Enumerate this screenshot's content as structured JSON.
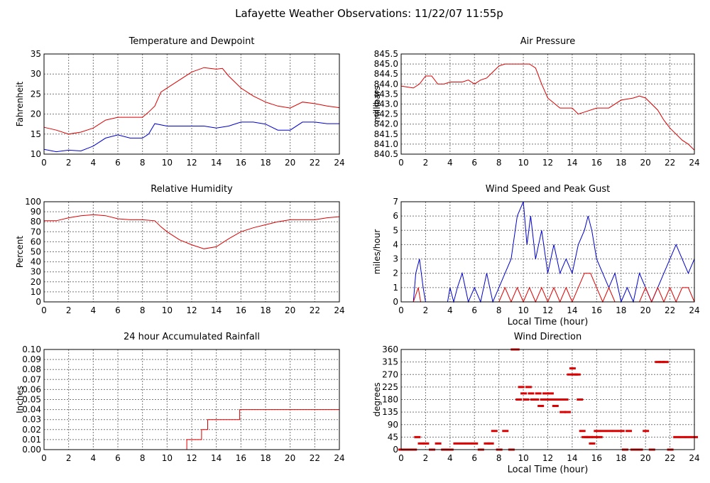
{
  "page": {
    "title": "Lafayette Weather Observations: 11/22/07 11:55p"
  },
  "colors": {
    "red": "#dd0000",
    "blue": "#0000cc",
    "grid": "#777777",
    "axis": "#000000"
  },
  "chart_data": [
    {
      "id": "temp",
      "type": "line",
      "title": "Temperature and Dewpoint",
      "xlabel": "",
      "ylabel": "Fahrenheit",
      "xlim": [
        0,
        24
      ],
      "ylim": [
        10,
        35
      ],
      "xticks": [
        0,
        2,
        4,
        6,
        8,
        10,
        12,
        14,
        16,
        18,
        20,
        22,
        24
      ],
      "yticks": [
        10,
        15,
        20,
        25,
        30,
        35
      ],
      "series": [
        {
          "color": "#dd0000",
          "x": [
            0,
            1,
            2,
            3,
            4,
            5,
            6,
            7,
            8,
            8.5,
            9,
            9.5,
            10,
            11,
            12,
            13,
            14,
            14.5,
            15,
            16,
            17,
            18,
            19,
            20,
            21,
            22,
            23,
            24
          ],
          "y": [
            16.7,
            16,
            15,
            15.5,
            16.5,
            18.5,
            19.2,
            19.2,
            19.2,
            20.5,
            22,
            25.5,
            26.5,
            28.5,
            30.5,
            31.6,
            31.2,
            31.4,
            29.5,
            26.5,
            24.5,
            23,
            22,
            21.5,
            23,
            22.6,
            22,
            21.6
          ]
        },
        {
          "color": "#0000cc",
          "x": [
            0,
            1,
            2,
            3,
            4,
            5,
            6,
            7,
            8,
            8.5,
            9,
            10,
            11,
            12,
            13,
            14,
            15,
            16,
            17,
            18,
            19,
            20,
            21,
            22,
            23,
            24
          ],
          "y": [
            11.2,
            10.6,
            11,
            10.8,
            12,
            14,
            14.8,
            14,
            14,
            15,
            17.6,
            17,
            17,
            17,
            17,
            16.5,
            17,
            18,
            18,
            17.5,
            16,
            16,
            18,
            18,
            17.6,
            17.6
          ]
        }
      ]
    },
    {
      "id": "pressure",
      "type": "line",
      "title": "Air Pressure",
      "xlabel": "",
      "ylabel": "millibars",
      "xlim": [
        0,
        24
      ],
      "ylim": [
        840.5,
        845.5
      ],
      "xticks": [
        0,
        2,
        4,
        6,
        8,
        10,
        12,
        14,
        16,
        18,
        20,
        22,
        24
      ],
      "yticks": [
        840.5,
        841.0,
        841.5,
        842.0,
        842.5,
        843.0,
        843.5,
        844.0,
        844.5,
        845.0,
        845.5
      ],
      "ytick_labels": [
        "840.5",
        "841.0",
        "841.5",
        "842.0",
        "842.5",
        "843.0",
        "843.5",
        "844.0",
        "844.5",
        "845.0",
        "845.5"
      ],
      "series": [
        {
          "color": "#dd0000",
          "x": [
            0,
            1,
            1.5,
            2,
            2.5,
            3,
            3.5,
            4,
            5,
            5.5,
            6,
            6.5,
            7,
            7.5,
            8,
            8.5,
            9,
            10,
            10.5,
            11,
            11.5,
            12,
            13,
            14,
            14.5,
            15,
            16,
            17,
            18,
            19,
            19.5,
            20,
            21,
            21.5,
            22,
            22.5,
            23,
            23.5,
            24
          ],
          "y": [
            843.9,
            843.8,
            844.0,
            844.4,
            844.4,
            844.0,
            844.0,
            844.1,
            844.1,
            844.2,
            844.0,
            844.2,
            844.3,
            844.6,
            844.9,
            845.0,
            845.0,
            845.0,
            845.0,
            844.8,
            844.0,
            843.3,
            842.8,
            842.8,
            842.5,
            842.6,
            842.8,
            842.8,
            843.2,
            843.3,
            843.4,
            843.3,
            842.7,
            842.2,
            841.8,
            841.5,
            841.2,
            841.0,
            840.7
          ]
        }
      ]
    },
    {
      "id": "humidity",
      "type": "line",
      "title": "Relative Humidity",
      "xlabel": "",
      "ylabel": "Percent",
      "xlim": [
        0,
        24
      ],
      "ylim": [
        0,
        100
      ],
      "xticks": [
        0,
        2,
        4,
        6,
        8,
        10,
        12,
        14,
        16,
        18,
        20,
        22,
        24
      ],
      "yticks": [
        0,
        10,
        20,
        30,
        40,
        50,
        60,
        70,
        80,
        90,
        100
      ],
      "series": [
        {
          "color": "#dd0000",
          "x": [
            0,
            1,
            2,
            3,
            4,
            5,
            6,
            7,
            8,
            9,
            9.5,
            10,
            11,
            12,
            13,
            14,
            15,
            16,
            17,
            18,
            19,
            20,
            21,
            22,
            23,
            24
          ],
          "y": [
            81,
            81,
            84,
            86,
            87,
            86,
            83,
            82,
            82,
            81,
            75,
            70,
            62,
            57,
            53,
            55,
            63,
            70,
            74,
            77,
            80,
            82,
            82,
            82,
            84,
            85
          ]
        }
      ]
    },
    {
      "id": "wind",
      "type": "line",
      "title": "Wind Speed and Peak Gust",
      "xlabel": "Local Time (hour)",
      "ylabel": "miles/hour",
      "xlim": [
        0,
        24
      ],
      "ylim": [
        0,
        7
      ],
      "xticks": [
        0,
        2,
        4,
        6,
        8,
        10,
        12,
        14,
        16,
        18,
        20,
        22,
        24
      ],
      "yticks": [
        0,
        1,
        2,
        3,
        4,
        5,
        6,
        7
      ],
      "series": [
        {
          "color": "#0000cc",
          "x": [
            0,
            1,
            1.2,
            1.5,
            1.8,
            2,
            3,
            3.8,
            4,
            4.3,
            4.6,
            5,
            5.5,
            6,
            6.5,
            7,
            7.5,
            8,
            8.5,
            9,
            9.5,
            10,
            10.3,
            10.6,
            11,
            11.5,
            12,
            12.5,
            13,
            13.5,
            14,
            14.5,
            15,
            15.3,
            15.6,
            16,
            16.5,
            17,
            17.5,
            18,
            18.5,
            19,
            19.5,
            20,
            20.5,
            21,
            21.5,
            22,
            22.5,
            23,
            23.5,
            24
          ],
          "y": [
            0,
            0,
            2,
            3,
            1,
            0,
            0,
            0,
            1,
            0,
            1,
            2,
            0,
            1,
            0,
            2,
            0,
            1,
            2,
            3,
            6,
            7,
            4,
            6,
            3,
            5,
            2,
            4,
            2,
            3,
            2,
            4,
            5,
            6,
            5,
            3,
            2,
            1,
            2,
            0,
            1,
            0,
            2,
            1,
            0,
            1,
            2,
            3,
            4,
            3,
            2,
            3
          ]
        },
        {
          "color": "#dd0000",
          "x": [
            0,
            1,
            1.4,
            1.6,
            2,
            8,
            8.5,
            9,
            9.5,
            10,
            10.5,
            11,
            11.5,
            12,
            12.5,
            13,
            13.5,
            14,
            14.5,
            15,
            15.5,
            16,
            16.5,
            17,
            17.5,
            18,
            18.5,
            19,
            19.5,
            20,
            20.5,
            21,
            21.5,
            22,
            22.5,
            23,
            23.5,
            24
          ],
          "y": [
            0,
            0,
            1,
            0,
            0,
            0,
            1,
            0,
            1,
            0,
            1,
            0,
            1,
            0,
            1,
            0,
            1,
            0,
            1,
            2,
            2,
            1,
            0,
            1,
            0,
            0,
            0,
            0,
            0,
            1,
            0,
            1,
            0,
            1,
            0,
            1,
            1,
            0
          ]
        }
      ]
    },
    {
      "id": "rain",
      "type": "line",
      "title": "24 hour Accumulated Rainfall",
      "xlabel": "",
      "ylabel": "Inches",
      "xlim": [
        0,
        24
      ],
      "ylim": [
        0,
        0.1
      ],
      "xticks": [
        0,
        2,
        4,
        6,
        8,
        10,
        12,
        14,
        16,
        18,
        20,
        22,
        24
      ],
      "yticks": [
        0,
        0.01,
        0.02,
        0.03,
        0.04,
        0.05,
        0.06,
        0.07,
        0.08,
        0.09,
        0.1
      ],
      "ytick_labels": [
        "0.00",
        "0.01",
        "0.02",
        "0.03",
        "0.04",
        "0.05",
        "0.06",
        "0.07",
        "0.08",
        "0.09",
        "0.10"
      ],
      "series": [
        {
          "color": "#dd0000",
          "x": [
            0,
            11.6,
            11.6,
            12.8,
            12.8,
            13.3,
            13.3,
            15.9,
            15.9,
            24
          ],
          "y": [
            0,
            0,
            0.01,
            0.01,
            0.02,
            0.02,
            0.03,
            0.03,
            0.04,
            0.04
          ]
        }
      ]
    },
    {
      "id": "direction",
      "type": "scatter",
      "title": "Wind Direction",
      "xlabel": "Local Time (hour)",
      "ylabel": "degrees",
      "xlim": [
        0,
        24
      ],
      "ylim": [
        0,
        360
      ],
      "xticks": [
        0,
        2,
        4,
        6,
        8,
        10,
        12,
        14,
        16,
        18,
        20,
        22,
        24
      ],
      "yticks": [
        0,
        45,
        90,
        135,
        180,
        225,
        270,
        315,
        360
      ],
      "series": [
        {
          "color": "#dd0000",
          "x": [
            0,
            0.5,
            1,
            1.3,
            1.6,
            2,
            2.5,
            3,
            3.5,
            4,
            4.5,
            5,
            5.5,
            6,
            6.5,
            7,
            7.3,
            7.6,
            8,
            8.5,
            9,
            9.2,
            9.4,
            9.6,
            9.8,
            10,
            10.2,
            10.4,
            10.6,
            10.8,
            11,
            11.2,
            11.4,
            11.6,
            11.8,
            12,
            12.2,
            12.4,
            12.6,
            12.8,
            13,
            13.2,
            13.4,
            13.6,
            13.8,
            14,
            14.2,
            14.4,
            14.6,
            14.8,
            15,
            15.2,
            15.4,
            15.6,
            15.8,
            16,
            16.2,
            16.5,
            17,
            17.5,
            18,
            18.3,
            18.6,
            19,
            19.5,
            20,
            20.5,
            21,
            21.3,
            21.6,
            22,
            22.5,
            23,
            23.5,
            24
          ],
          "y": [
            0,
            0,
            0,
            45,
            22,
            22,
            0,
            22,
            0,
            0,
            22,
            22,
            22,
            22,
            0,
            22,
            22,
            67,
            0,
            67,
            0,
            360,
            360,
            180,
            225,
            202,
            180,
            225,
            202,
            180,
            180,
            202,
            157,
            180,
            202,
            180,
            202,
            180,
            157,
            180,
            180,
            135,
            180,
            135,
            270,
            292,
            270,
            270,
            180,
            67,
            45,
            45,
            45,
            22,
            45,
            67,
            45,
            67,
            67,
            67,
            67,
            0,
            67,
            0,
            0,
            67,
            0,
            315,
            315,
            315,
            0,
            45,
            45,
            45,
            45
          ]
        }
      ]
    }
  ]
}
